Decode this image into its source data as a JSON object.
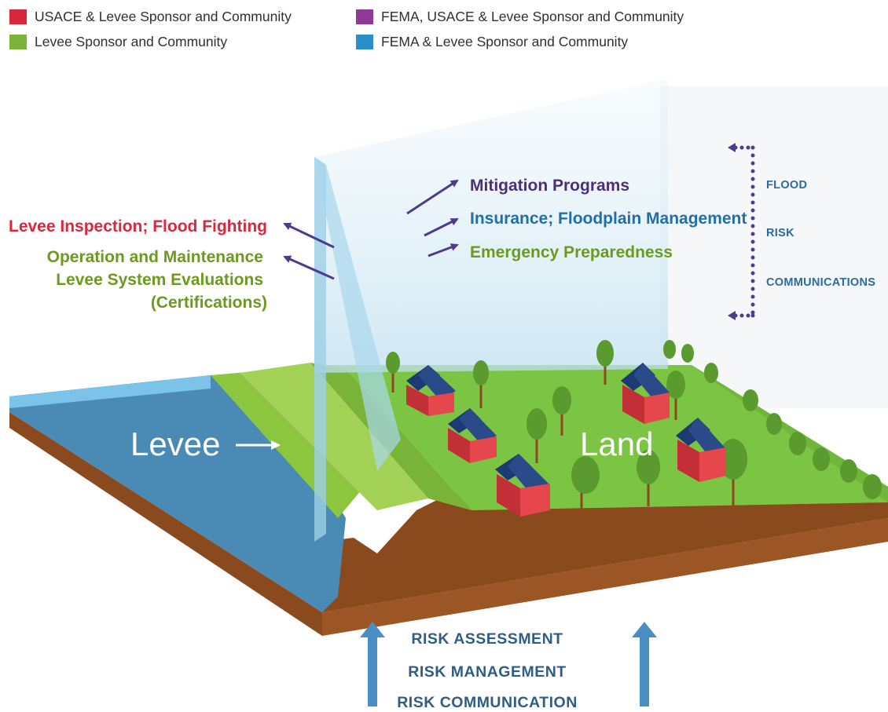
{
  "legend": [
    {
      "label": "USACE & Levee Sponsor and Community",
      "color": "#d8283d"
    },
    {
      "label": "FEMA, USACE & Levee Sponsor and Community",
      "color": "#8e3a96"
    },
    {
      "label": "Levee Sponsor and Community",
      "color": "#7cb33a"
    },
    {
      "label": "FEMA & Levee Sponsor and Community",
      "color": "#2b8ec9"
    }
  ],
  "left_labels": {
    "red": "Levee Inspection; Flood Fighting",
    "green1": "Operation and Maintenance",
    "green2": "Levee System Evaluations",
    "green3": "(Certifications)"
  },
  "right_labels": {
    "purple": "Mitigation Programs",
    "blue": "Insurance; Floodplain Management",
    "green": "Emergency Preparedness"
  },
  "side_labels": [
    "FLOOD",
    "RISK",
    "COMMUNICATIONS"
  ],
  "scene_labels": {
    "levee": "Levee",
    "land": "Land"
  },
  "bottom_labels": [
    "RISK ASSESSMENT",
    "RISK MANAGEMENT",
    "RISK COMMUNICATION"
  ],
  "colors": {
    "arrow": "#4e3a8e",
    "water": "#4a8bb5",
    "grass": "#7cc443",
    "soil": "#8a4a1d",
    "house": "#e6474d",
    "roof": "#1e3a73"
  }
}
